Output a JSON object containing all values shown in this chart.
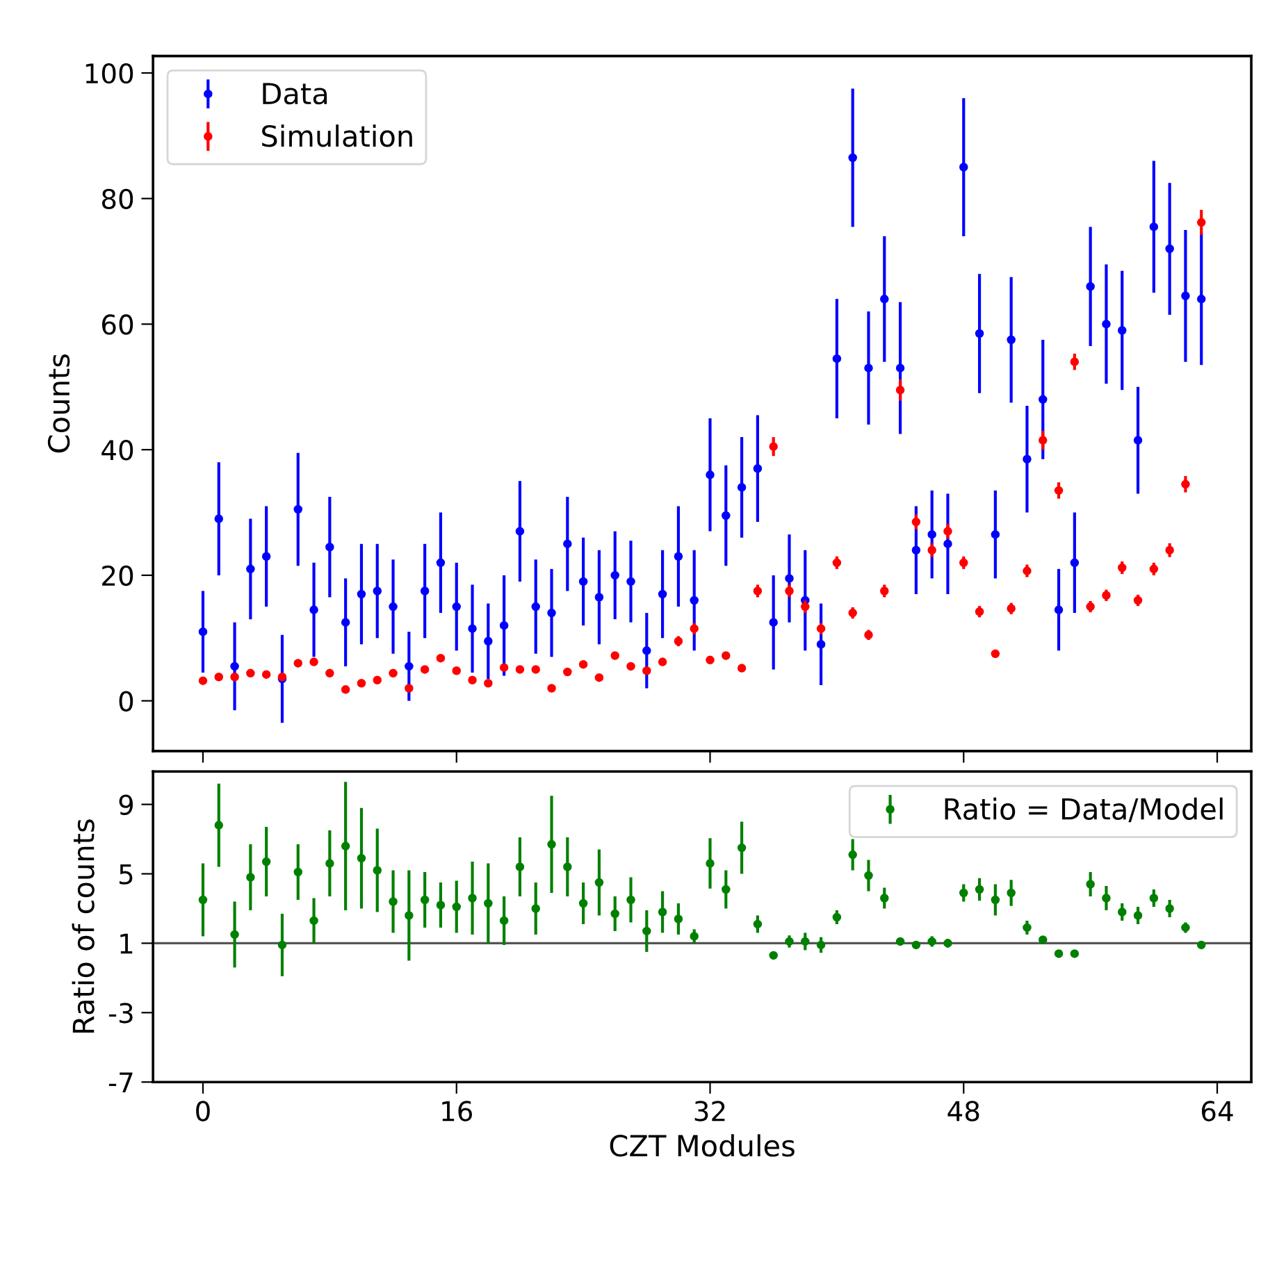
{
  "chart_data": [
    {
      "type": "scatter",
      "ylabel": "Counts",
      "x": [
        0,
        1,
        2,
        3,
        4,
        5,
        6,
        7,
        8,
        9,
        10,
        11,
        12,
        13,
        14,
        15,
        16,
        17,
        18,
        19,
        20,
        21,
        22,
        23,
        24,
        25,
        26,
        27,
        28,
        29,
        30,
        31,
        32,
        33,
        34,
        35,
        36,
        37,
        38,
        39,
        40,
        41,
        42,
        43,
        44,
        45,
        46,
        47,
        48,
        49,
        50,
        51,
        52,
        53,
        54,
        55,
        56,
        57,
        58,
        59,
        60,
        61,
        62,
        63
      ],
      "series": [
        {
          "name": "Data",
          "color": "#0000ff",
          "values": [
            11,
            29,
            5.5,
            21,
            23,
            3.5,
            30.5,
            14.5,
            24.5,
            12.5,
            17,
            17.5,
            15,
            5.5,
            17.5,
            22,
            15,
            11.5,
            9.5,
            12,
            27,
            15,
            14,
            25,
            19,
            16.5,
            20,
            19,
            8,
            17,
            23,
            16,
            36,
            29.5,
            34,
            37,
            12.5,
            19.5,
            16,
            9,
            54.5,
            86.5,
            53,
            64,
            53,
            24,
            26.5,
            25,
            85,
            58.5,
            26.5,
            57.5,
            38.5,
            48,
            14.5,
            22,
            66,
            60,
            59,
            41.5,
            75.5,
            72,
            64.5,
            64
          ],
          "errors": [
            6.5,
            9,
            7,
            8,
            8,
            7,
            9,
            7.5,
            8,
            7,
            8,
            7.5,
            7.5,
            5.5,
            7.5,
            8,
            7,
            7,
            6,
            8,
            8,
            7.5,
            7,
            7.5,
            7,
            7.5,
            7,
            6.5,
            6,
            7,
            8,
            8,
            9,
            8,
            8,
            8.5,
            7.5,
            7,
            8,
            6.5,
            9.5,
            11,
            9,
            10,
            10.5,
            7,
            7,
            8,
            11,
            9.5,
            7,
            10,
            8.5,
            9.5,
            6.5,
            8,
            9.5,
            9.5,
            9.5,
            8.5,
            10.5,
            10.5,
            10.5,
            10.5
          ]
        },
        {
          "name": "Simulation",
          "color": "#ff0000",
          "values": [
            3.2,
            3.8,
            3.8,
            4.4,
            4.2,
            3.8,
            6,
            6.2,
            4.4,
            1.8,
            2.8,
            3.3,
            4.4,
            2,
            5,
            6.8,
            4.8,
            3.3,
            2.8,
            5.3,
            5,
            5,
            2,
            4.6,
            5.8,
            3.7,
            7.2,
            5.5,
            4.8,
            6.2,
            9.5,
            11.5,
            6.5,
            7.2,
            5.2,
            17.5,
            40.5,
            17.5,
            15,
            11.5,
            22,
            14,
            10.5,
            17.5,
            49.5,
            28.5,
            24,
            27,
            22,
            14.2,
            7.5,
            14.7,
            20.7,
            41.5,
            33.5,
            54,
            15,
            16.8,
            21.2,
            16,
            21,
            24,
            34.5,
            76.2
          ],
          "errors": [
            0.4,
            0.4,
            0.4,
            0.5,
            0.5,
            0.4,
            0.6,
            0.6,
            0.5,
            0.3,
            0.4,
            0.4,
            0.5,
            0.3,
            0.5,
            0.6,
            0.5,
            0.4,
            0.4,
            0.5,
            0.5,
            0.5,
            0.3,
            0.5,
            0.6,
            0.4,
            0.6,
            0.5,
            0.5,
            0.6,
            0.8,
            0.9,
            0.6,
            0.6,
            0.5,
            1,
            1.5,
            1,
            1,
            0.9,
            1,
            0.9,
            0.8,
            1,
            1.7,
            1.2,
            1.1,
            1.2,
            1,
            0.9,
            0.6,
            0.9,
            1,
            1.5,
            1.3,
            1.3,
            0.9,
            0.9,
            1,
            0.9,
            1,
            1.1,
            1.3,
            2
          ]
        }
      ],
      "xlim": [
        -3.15,
        66.15
      ],
      "ylim": [
        -8,
        102.7
      ],
      "xticks": [
        {
          "value": 0,
          "label": null
        },
        {
          "value": 16,
          "label": null
        },
        {
          "value": 32,
          "label": null
        },
        {
          "value": 48,
          "label": null
        },
        {
          "value": 64,
          "label": null
        }
      ],
      "yticks": [
        0,
        20,
        40,
        60,
        80,
        100
      ],
      "tick_labels": "y",
      "marker": "circle",
      "legend": "top left",
      "grid": false
    },
    {
      "type": "scatter",
      "xlabel": "CZT Modules",
      "ylabel": "Ratio of counts",
      "x": [
        0,
        1,
        2,
        3,
        4,
        5,
        6,
        7,
        8,
        9,
        10,
        11,
        12,
        13,
        14,
        15,
        16,
        17,
        18,
        19,
        20,
        21,
        22,
        23,
        24,
        25,
        26,
        27,
        28,
        29,
        30,
        31,
        32,
        33,
        34,
        35,
        36,
        37,
        38,
        39,
        40,
        41,
        42,
        43,
        44,
        45,
        46,
        47,
        48,
        49,
        50,
        51,
        52,
        53,
        54,
        55,
        56,
        57,
        58,
        59,
        60,
        61,
        62,
        63
      ],
      "series": [
        {
          "name": "Ratio = Data/Model",
          "color": "#008000",
          "values": [
            3.5,
            7.8,
            1.5,
            4.8,
            5.7,
            0.9,
            5.1,
            2.3,
            5.6,
            6.6,
            5.9,
            5.2,
            3.4,
            2.6,
            3.5,
            3.2,
            3.1,
            3.6,
            3.3,
            2.3,
            5.4,
            3.0,
            6.7,
            5.4,
            3.3,
            4.5,
            2.7,
            3.5,
            1.7,
            2.8,
            2.4,
            1.4,
            5.6,
            4.1,
            6.5,
            2.1,
            0.3,
            1.1,
            1.1,
            0.9,
            2.5,
            6.1,
            4.9,
            3.6,
            1.1,
            0.9,
            1.1,
            1.0,
            3.9,
            4.1,
            3.5,
            3.9,
            1.9,
            1.2,
            0.4,
            0.4,
            4.4,
            3.6,
            2.8,
            2.6,
            3.6,
            3.0,
            1.9,
            0.9
          ],
          "errors": [
            2.1,
            2.4,
            1.9,
            1.9,
            2,
            1.8,
            1.6,
            1.3,
            1.9,
            3.7,
            2.9,
            2.4,
            1.8,
            2.6,
            1.6,
            1.3,
            1.5,
            2.1,
            2.3,
            1.4,
            1.7,
            1.5,
            2.8,
            1.7,
            1.2,
            1.9,
            1.0,
            1.3,
            1.2,
            1.2,
            0.9,
            0.4,
            1.45,
            1.1,
            1.5,
            0.5,
            0.1,
            0.35,
            0.5,
            0.45,
            0.4,
            0.9,
            0.9,
            0.6,
            0.15,
            0.2,
            0.3,
            0.25,
            0.5,
            0.65,
            0.9,
            0.75,
            0.4,
            0.2,
            0.1,
            0.1,
            0.7,
            0.7,
            0.5,
            0.5,
            0.5,
            0.5,
            0.3,
            0.1
          ]
        }
      ],
      "xlim": [
        -3.15,
        66.15
      ],
      "ylim": [
        -7,
        10.9
      ],
      "xticks": [
        0,
        16,
        32,
        48,
        64
      ],
      "yticks": [
        9,
        5,
        1,
        -3,
        -7
      ],
      "marker": "circle",
      "legend": "top right",
      "grid": false,
      "ref_lines": [
        {
          "axis": "y",
          "value": 1,
          "color": "#555555",
          "line_style": "solid"
        }
      ]
    }
  ]
}
